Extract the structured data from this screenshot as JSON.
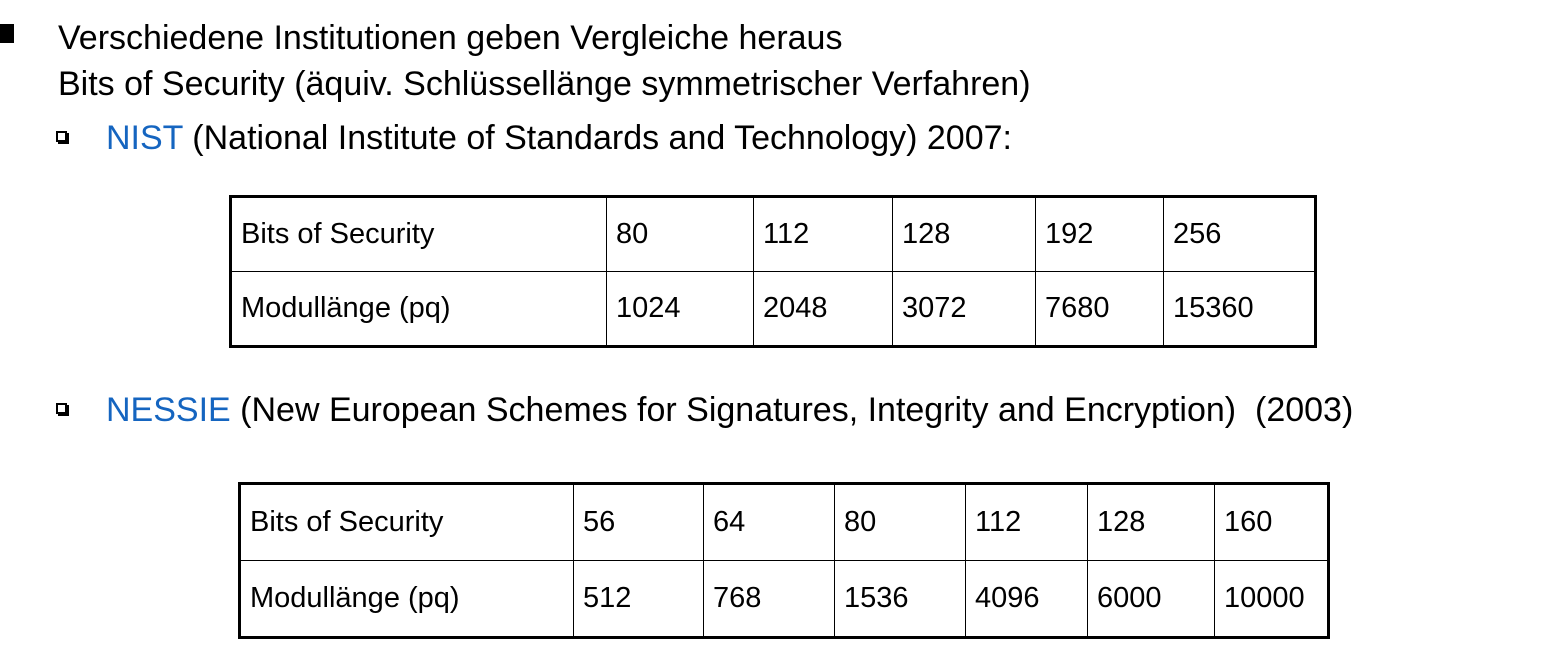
{
  "main_bullet": {
    "line1": "Verschiedene Institutionen geben Vergleiche heraus",
    "line2": "Bits of Security (äquiv. Schlüssellänge symmetrischer Verfahren)"
  },
  "nist": {
    "name": "NIST",
    "description": " (National Institute of Standards and Technology) 2007:",
    "table": {
      "row1": [
        "Bits of Security",
        "80",
        "112",
        "128",
        "192",
        "256"
      ],
      "row2": [
        "Modullänge (pq)",
        "1024",
        "2048",
        "3072",
        "7680",
        "15360"
      ]
    }
  },
  "nessie": {
    "name": "NESSIE",
    "description": " (New European Schemes for Signatures, Integrity and Encryption)  (2003)",
    "table": {
      "row1": [
        "Bits of Security",
        "56",
        "64",
        "80",
        "112",
        "128",
        "160"
      ],
      "row2": [
        "Modullänge (pq)",
        "512",
        "768",
        "1536",
        "4096",
        "6000",
        "10000"
      ]
    }
  },
  "colors": {
    "accent": "#1565c0",
    "text": "#000000"
  }
}
